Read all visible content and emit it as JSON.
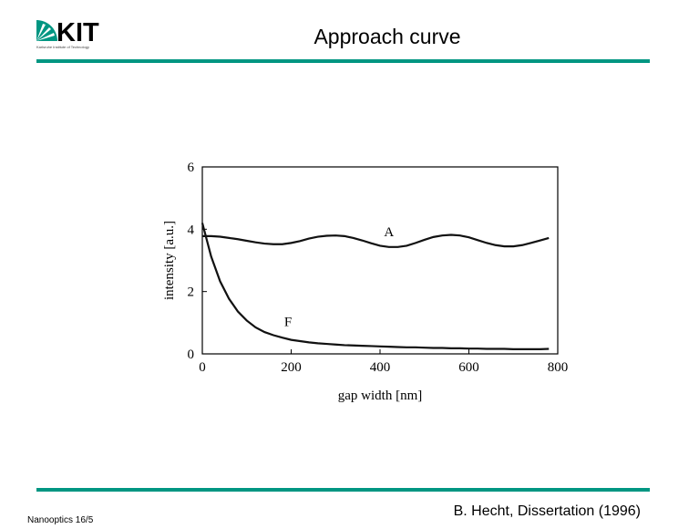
{
  "slide": {
    "logo": "KIT",
    "logo_subtitle": "Karlsruhe Institute of Technology",
    "title": "Approach curve",
    "footer": "Nanooptics 16/5",
    "citation": "B. Hecht, Dissertation (1996)"
  },
  "chart_data": {
    "type": "line",
    "xlabel": "gap width [nm]",
    "ylabel": "intensity [a.u.]",
    "x": [
      0,
      20,
      40,
      60,
      80,
      100,
      120,
      140,
      160,
      180,
      200,
      220,
      240,
      260,
      280,
      300,
      320,
      340,
      360,
      380,
      400,
      420,
      440,
      460,
      480,
      500,
      520,
      540,
      560,
      580,
      600,
      620,
      640,
      660,
      680,
      700,
      720,
      740,
      760,
      780
    ],
    "series": [
      {
        "name": "A",
        "color": "#111111",
        "values": [
          3.78,
          3.78,
          3.76,
          3.72,
          3.68,
          3.63,
          3.58,
          3.54,
          3.52,
          3.52,
          3.56,
          3.62,
          3.7,
          3.76,
          3.79,
          3.8,
          3.78,
          3.72,
          3.64,
          3.55,
          3.47,
          3.43,
          3.43,
          3.47,
          3.56,
          3.66,
          3.75,
          3.8,
          3.82,
          3.8,
          3.74,
          3.65,
          3.56,
          3.49,
          3.45,
          3.45,
          3.49,
          3.56,
          3.64,
          3.72
        ]
      },
      {
        "name": "F",
        "color": "#111111",
        "values": [
          4.2,
          3.12,
          2.33,
          1.77,
          1.36,
          1.07,
          0.85,
          0.7,
          0.6,
          0.52,
          0.45,
          0.41,
          0.37,
          0.34,
          0.32,
          0.3,
          0.28,
          0.27,
          0.26,
          0.25,
          0.24,
          0.23,
          0.22,
          0.21,
          0.21,
          0.2,
          0.19,
          0.19,
          0.18,
          0.18,
          0.17,
          0.17,
          0.16,
          0.16,
          0.16,
          0.15,
          0.15,
          0.15,
          0.15,
          0.16
        ]
      }
    ],
    "xlim": [
      0,
      800
    ],
    "xticks": [
      0,
      200,
      400,
      600,
      800
    ],
    "ylim": [
      0,
      6
    ],
    "yticks": [
      0,
      2,
      4,
      6
    ]
  }
}
